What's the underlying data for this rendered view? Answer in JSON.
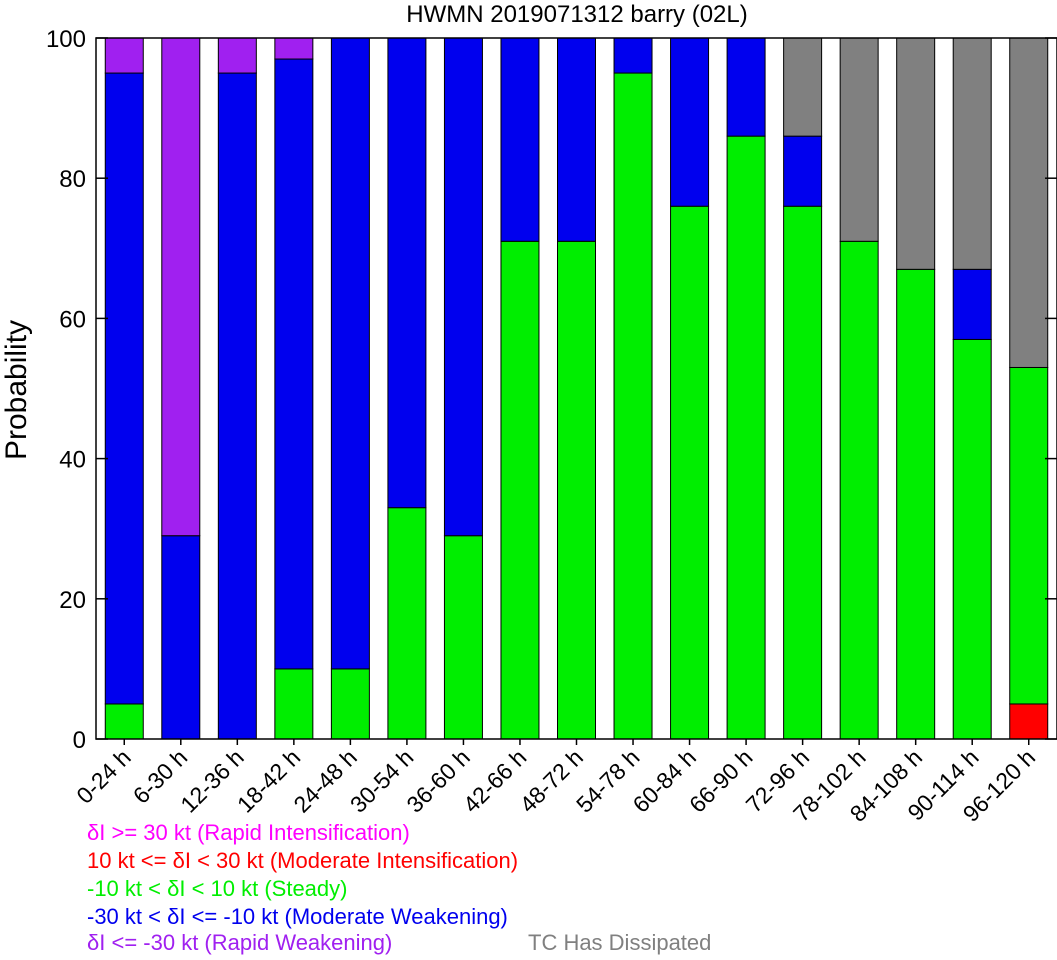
{
  "chart_data": {
    "type": "bar",
    "stacked": true,
    "title": "HWMN 2019071312 barry (02L)",
    "ylabel": "Probability",
    "xlabel": "",
    "ylim": [
      0,
      100
    ],
    "yticks": [
      0,
      20,
      40,
      60,
      80,
      100
    ],
    "grid": false,
    "categories": [
      "0-24 h",
      "6-30 h",
      "12-36 h",
      "18-42 h",
      "24-48 h",
      "30-54 h",
      "36-60 h",
      "42-66 h",
      "48-72 h",
      "54-78 h",
      "60-84 h",
      "66-90 h",
      "72-96 h",
      "78-102 h",
      "84-108 h",
      "90-114 h",
      "96-120 h"
    ],
    "series": [
      {
        "key": "mi",
        "color": "#ff0000",
        "values": [
          0,
          0,
          0,
          0,
          0,
          0,
          0,
          0,
          0,
          0,
          0,
          0,
          0,
          0,
          0,
          0,
          5
        ]
      },
      {
        "key": "st",
        "color": "#00ee00",
        "values": [
          5,
          0,
          0,
          10,
          10,
          33,
          29,
          71,
          71,
          95,
          76,
          86,
          76,
          71,
          67,
          57,
          48
        ]
      },
      {
        "key": "mw",
        "color": "#0000ee",
        "values": [
          90,
          29,
          95,
          87,
          90,
          67,
          71,
          29,
          29,
          5,
          24,
          14,
          10,
          0,
          0,
          10,
          0
        ]
      },
      {
        "key": "rw",
        "color": "#a020f0",
        "values": [
          5,
          71,
          5,
          3,
          0,
          0,
          0,
          0,
          0,
          0,
          0,
          0,
          0,
          0,
          0,
          0,
          0
        ]
      },
      {
        "key": "dis",
        "color": "#808080",
        "values": [
          0,
          0,
          0,
          0,
          0,
          0,
          0,
          0,
          0,
          0,
          0,
          0,
          14,
          29,
          33,
          33,
          47
        ]
      }
    ],
    "legend": {
      "placement": "bottom-left",
      "entries": [
        {
          "text": "δI >= 30 kt (Rapid Intensification)",
          "color": "#ff00ff"
        },
        {
          "text": "10 kt <= δI < 30 kt (Moderate Intensification)",
          "color": "#ff0000"
        },
        {
          "text": "-10 kt < δI < 10 kt (Steady)",
          "color": "#00ee00"
        },
        {
          "text": "-30 kt < δI <= -10 kt (Moderate Weakening)",
          "color": "#0000ee"
        },
        {
          "text": "δI <= -30 kt (Rapid Weakening)",
          "color": "#a020f0"
        }
      ],
      "dissipated": {
        "text": "TC Has Dissipated",
        "color": "#808080"
      }
    }
  }
}
